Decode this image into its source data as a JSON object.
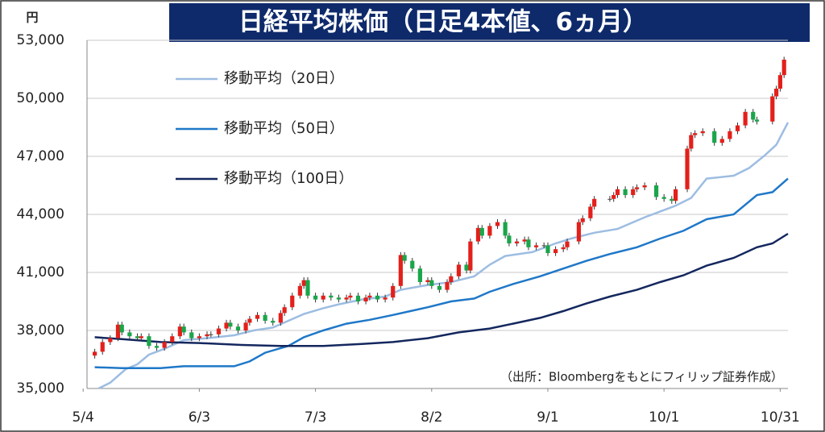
{
  "chart_data": {
    "type": "candlestick",
    "title": "日経平均株価（日足4本値、6ヵ月）",
    "y_unit": "円",
    "source": "（出所：Bloombergをもとにフィリップ証券作成）",
    "xlim": [
      1,
      182
    ],
    "xticks": [
      {
        "value": 0,
        "label": "5/4"
      },
      {
        "value": 30,
        "label": "6/3"
      },
      {
        "value": 60,
        "label": "7/3"
      },
      {
        "value": 90,
        "label": "8/2"
      },
      {
        "value": 120,
        "label": "9/1"
      },
      {
        "value": 150,
        "label": "10/1"
      },
      {
        "value": 180,
        "label": "10/31"
      }
    ],
    "ylim": [
      35000,
      53000
    ],
    "yticks": [
      {
        "value": 35000,
        "label": "35,000"
      },
      {
        "value": 38000,
        "label": "38,000"
      },
      {
        "value": 41000,
        "label": "41,000"
      },
      {
        "value": 44000,
        "label": "44,000"
      },
      {
        "value": 47000,
        "label": "47,000"
      },
      {
        "value": 50000,
        "label": "50,000"
      },
      {
        "value": 53000,
        "label": "53,000"
      }
    ],
    "grid": true,
    "up_color": "#e3201b",
    "down_color": "#1aa64a",
    "candles": {
      "x": [
        3,
        5,
        7,
        9,
        10,
        12,
        14,
        15,
        17,
        19,
        21,
        23,
        25,
        26,
        28,
        30,
        32,
        33,
        35,
        37,
        38,
        40,
        42,
        43,
        45,
        47,
        49,
        51,
        52,
        54,
        56,
        57,
        58,
        60,
        62,
        64,
        66,
        68,
        69,
        71,
        73,
        74,
        76,
        78,
        80,
        82,
        83,
        85,
        87,
        89,
        90,
        92,
        94,
        95,
        97,
        99,
        100,
        102,
        103,
        105,
        107,
        109,
        110,
        112,
        114,
        115,
        117,
        119,
        120,
        122,
        124,
        125,
        128,
        129,
        131,
        132,
        136,
        137,
        138,
        140,
        142,
        143,
        145,
        148,
        150,
        152,
        153,
        156,
        157,
        158,
        160,
        163,
        165,
        167,
        169,
        171,
        173,
        174,
        178,
        179,
        180,
        181
      ],
      "open": [
        36700,
        36900,
        37400,
        37600,
        38300,
        37900,
        37700,
        37600,
        37700,
        37200,
        37100,
        37400,
        37700,
        38200,
        37900,
        37600,
        37700,
        37800,
        37800,
        38100,
        38400,
        38200,
        38000,
        38400,
        38600,
        38800,
        38500,
        38400,
        38900,
        39200,
        39800,
        40300,
        40600,
        39800,
        39600,
        39800,
        39700,
        39600,
        39700,
        39800,
        39500,
        39700,
        39800,
        39600,
        39700,
        40300,
        41900,
        41600,
        41200,
        40500,
        40600,
        40300,
        40100,
        40500,
        40800,
        41400,
        41100,
        42600,
        43300,
        42900,
        43400,
        43600,
        42900,
        42500,
        42600,
        42700,
        42300,
        42400,
        42400,
        42000,
        42200,
        42300,
        42600,
        43600,
        43800,
        44400,
        44800,
        44800,
        45000,
        45300,
        45000,
        45300,
        45400,
        45500,
        44900,
        44800,
        44700,
        45300,
        47400,
        48100,
        48200,
        48300,
        47700,
        47900,
        48300,
        48600,
        49300,
        48900,
        48800,
        50100,
        50500,
        51200
      ],
      "high": [
        37050,
        37550,
        37750,
        38450,
        38450,
        38050,
        37850,
        37850,
        37850,
        37350,
        37550,
        37850,
        38350,
        38350,
        38050,
        37850,
        37950,
        37950,
        38250,
        38550,
        38550,
        38350,
        38550,
        38750,
        38950,
        38950,
        38650,
        39050,
        39350,
        39950,
        40450,
        40750,
        40750,
        39950,
        39950,
        39950,
        39850,
        39850,
        39950,
        39950,
        39850,
        39950,
        39950,
        39850,
        40450,
        42050,
        42050,
        41750,
        41350,
        40750,
        40750,
        40450,
        40650,
        40950,
        41550,
        41550,
        42750,
        43450,
        43450,
        43550,
        43750,
        43750,
        43050,
        42750,
        42850,
        42850,
        42550,
        42550,
        42550,
        42350,
        42450,
        42750,
        43750,
        43950,
        44550,
        44950,
        44950,
        45150,
        45450,
        45450,
        45450,
        45550,
        45650,
        45650,
        45050,
        44950,
        45450,
        47550,
        48250,
        48350,
        48450,
        48450,
        48050,
        48450,
        48750,
        49450,
        49450,
        49050,
        50250,
        50650,
        51350,
        52150
      ],
      "low": [
        36550,
        36750,
        37250,
        37450,
        37750,
        37550,
        37450,
        37450,
        37050,
        36950,
        36950,
        37250,
        37550,
        37750,
        37450,
        37450,
        37550,
        37650,
        37650,
        37950,
        38050,
        37850,
        37850,
        38250,
        38450,
        38350,
        38250,
        38250,
        38750,
        39050,
        39650,
        40150,
        39650,
        39450,
        39450,
        39550,
        39450,
        39450,
        39550,
        39350,
        39350,
        39550,
        39450,
        39450,
        39550,
        40150,
        41450,
        41050,
        40350,
        40350,
        40150,
        39950,
        39950,
        40350,
        40650,
        40950,
        40950,
        42450,
        42750,
        42750,
        43250,
        42750,
        42350,
        42350,
        42450,
        42150,
        42150,
        42250,
        41850,
        41850,
        42050,
        42150,
        42450,
        43450,
        43650,
        44250,
        44650,
        44650,
        44850,
        44850,
        44850,
        45150,
        45250,
        44750,
        44650,
        44550,
        44550,
        45150,
        47250,
        47950,
        48050,
        47550,
        47550,
        47750,
        48150,
        48450,
        48750,
        48650,
        48650,
        49950,
        50350,
        51050
      ],
      "close": [
        36900,
        37400,
        37600,
        38300,
        37900,
        37700,
        37600,
        37700,
        37200,
        37100,
        37400,
        37700,
        38200,
        37900,
        37600,
        37700,
        37800,
        37800,
        38100,
        38400,
        38200,
        38000,
        38400,
        38600,
        38800,
        38500,
        38400,
        38900,
        39200,
        39800,
        40300,
        40600,
        39800,
        39600,
        39800,
        39700,
        39600,
        39700,
        39800,
        39500,
        39700,
        39800,
        39600,
        39700,
        40300,
        41900,
        41600,
        41200,
        40500,
        40600,
        40300,
        40100,
        40500,
        40800,
        41400,
        41100,
        42600,
        43300,
        42900,
        43400,
        43600,
        42900,
        42500,
        42600,
        42700,
        42300,
        42400,
        42400,
        42000,
        42200,
        42300,
        42600,
        43600,
        43800,
        44400,
        44800,
        44800,
        45000,
        45300,
        45000,
        45300,
        45400,
        45500,
        44900,
        44800,
        44700,
        45300,
        47400,
        48100,
        48200,
        48300,
        47700,
        47900,
        48300,
        48600,
        49300,
        48900,
        48800,
        50100,
        50500,
        51200,
        52000
      ]
    },
    "series": [
      {
        "name": "移動平均（20日）",
        "color": "#9dbde2",
        "x": [
          4,
          7,
          11,
          14,
          17,
          21,
          26,
          32,
          39,
          44,
          49,
          53,
          57,
          62,
          66,
          72,
          78,
          82,
          89,
          95,
          101,
          105,
          109,
          116,
          122,
          126,
          132,
          138,
          145,
          149,
          153,
          157,
          161,
          168,
          172,
          176,
          179,
          182
        ],
        "values": [
          35000,
          35300,
          36000,
          36250,
          36750,
          37050,
          37500,
          37600,
          37750,
          38000,
          38150,
          38500,
          38850,
          39150,
          39350,
          39600,
          39750,
          40100,
          40350,
          40500,
          40800,
          41400,
          41850,
          42050,
          42500,
          42750,
          43050,
          43250,
          43850,
          44150,
          44450,
          44850,
          45850,
          46000,
          46400,
          47050,
          47600,
          48750
        ]
      },
      {
        "name": "移動平均（50日）",
        "color": "#1f78c8",
        "x": [
          3,
          10,
          20,
          26,
          39,
          43,
          47,
          53,
          57,
          62,
          68,
          74,
          80,
          89,
          95,
          101,
          105,
          111,
          118,
          124,
          130,
          136,
          143,
          149,
          155,
          161,
          168,
          174,
          178,
          182
        ],
        "values": [
          36100,
          36050,
          36050,
          36150,
          36150,
          36400,
          36850,
          37200,
          37650,
          38000,
          38350,
          38550,
          38800,
          39200,
          39500,
          39650,
          40000,
          40400,
          40800,
          41200,
          41600,
          41950,
          42300,
          42750,
          43150,
          43750,
          44000,
          45000,
          45150,
          45850
        ]
      },
      {
        "name": "移動平均（100日）",
        "color": "#14275e",
        "x": [
          3,
          10,
          20,
          30,
          41,
          51,
          62,
          72,
          80,
          89,
          97,
          105,
          111,
          118,
          124,
          130,
          136,
          143,
          149,
          155,
          161,
          168,
          174,
          178,
          182
        ],
        "values": [
          37650,
          37550,
          37400,
          37350,
          37250,
          37200,
          37200,
          37300,
          37400,
          37600,
          37900,
          38100,
          38350,
          38650,
          39000,
          39400,
          39750,
          40100,
          40500,
          40850,
          41350,
          41750,
          42300,
          42500,
          43000
        ]
      }
    ]
  }
}
